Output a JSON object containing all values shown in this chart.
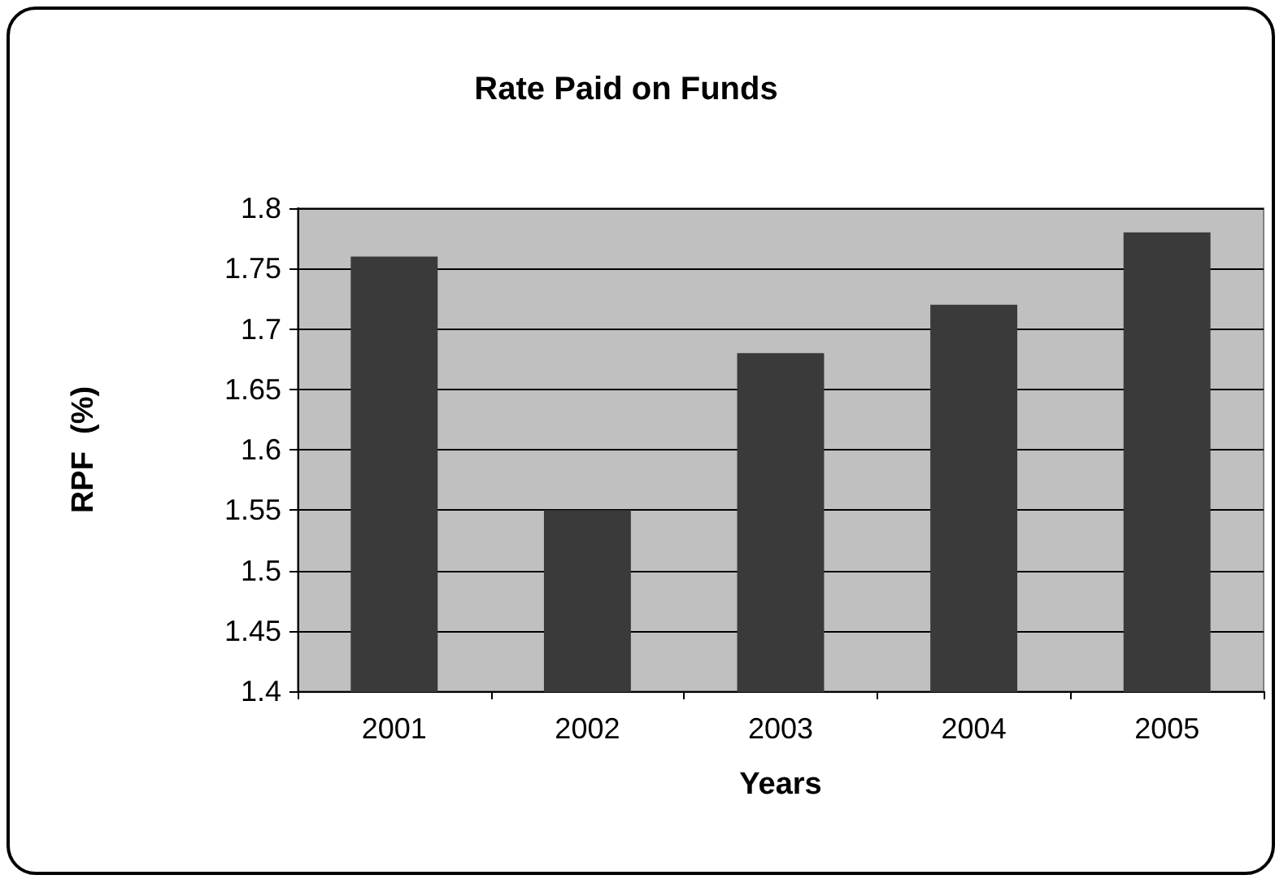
{
  "chart_data": {
    "type": "bar",
    "title": "Rate Paid on Funds",
    "xlabel": "Years",
    "ylabel": "RPF  (%)",
    "categories": [
      "2001",
      "2002",
      "2003",
      "2004",
      "2005"
    ],
    "values": [
      1.76,
      1.55,
      1.68,
      1.72,
      1.78
    ],
    "color": "#3a3a3a",
    "ylim": [
      1.4,
      1.8
    ],
    "yticks": [
      1.4,
      1.45,
      1.5,
      1.55,
      1.6,
      1.65,
      1.7,
      1.75,
      1.8
    ],
    "grid": "y"
  }
}
